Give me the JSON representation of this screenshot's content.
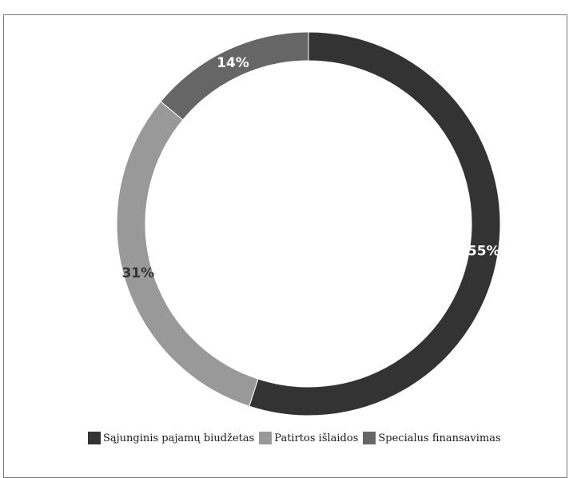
{
  "top_caption": "",
  "chart_data": {
    "type": "pie",
    "donut": true,
    "title": "",
    "legend_position": "bottom",
    "slices": [
      {
        "label": "Sąjunginis pajamų biudžetas",
        "value": 55,
        "display": "55%",
        "color": "#333333",
        "label_color": "#ffffff"
      },
      {
        "label": "Patirtos išlaidos",
        "value": 31,
        "display": "31%",
        "color": "#999999",
        "label_color": "#333333"
      },
      {
        "label": "Specialus finansavimas",
        "value": 14,
        "display": "14%",
        "color": "#666666",
        "label_color": "#ffffff"
      }
    ]
  }
}
